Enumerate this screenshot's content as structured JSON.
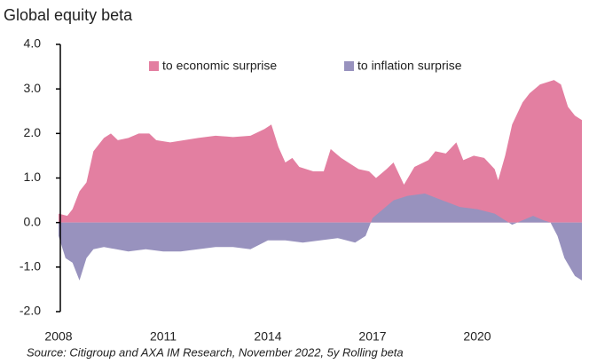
{
  "chart_data": {
    "type": "area",
    "title": "Global equity beta",
    "source": "Source: Citigroup and AXA IM Research, November 2022, 5y Rolling beta",
    "xlim": [
      2008,
      2023
    ],
    "xticks": [
      2008,
      2011,
      2014,
      2017,
      2020
    ],
    "ylim": [
      -2,
      4
    ],
    "yticks": [
      {
        "value": 4,
        "label": "4.0"
      },
      {
        "value": 3,
        "label": "3.0"
      },
      {
        "value": 2,
        "label": "2.0"
      },
      {
        "value": 1,
        "label": "1.0"
      },
      {
        "value": 0,
        "label": "0.0"
      },
      {
        "value": -1,
        "label": "-1.0"
      },
      {
        "value": -2,
        "label": "-2.0"
      }
    ],
    "legend": "top",
    "series": [
      {
        "name": "to economic surprise",
        "color": "#e37fa1",
        "x": [
          2008.0,
          2008.25,
          2008.4,
          2008.6,
          2008.8,
          2009.0,
          2009.3,
          2009.5,
          2009.7,
          2010.0,
          2010.3,
          2010.6,
          2010.8,
          2011.2,
          2011.6,
          2012.0,
          2012.5,
          2013.0,
          2013.5,
          2013.9,
          2014.1,
          2014.3,
          2014.5,
          2014.7,
          2014.9,
          2015.3,
          2015.6,
          2015.8,
          2016.1,
          2016.4,
          2016.6,
          2016.9,
          2017.1,
          2017.4,
          2017.6,
          2017.9,
          2018.2,
          2018.6,
          2018.8,
          2019.1,
          2019.4,
          2019.6,
          2019.9,
          2020.2,
          2020.5,
          2020.6,
          2020.8,
          2021.0,
          2021.3,
          2021.5,
          2021.8,
          2022.2,
          2022.4,
          2022.6,
          2022.8,
          2023.0
        ],
        "values": [
          0.2,
          0.15,
          0.3,
          0.7,
          0.9,
          1.6,
          1.9,
          2.0,
          1.85,
          1.9,
          2.0,
          2.0,
          1.85,
          1.8,
          1.85,
          1.9,
          1.95,
          1.92,
          1.95,
          2.1,
          2.2,
          1.7,
          1.35,
          1.45,
          1.25,
          1.15,
          1.15,
          1.65,
          1.45,
          1.3,
          1.2,
          1.15,
          1.0,
          1.2,
          1.35,
          0.85,
          1.25,
          1.4,
          1.6,
          1.55,
          1.8,
          1.4,
          1.5,
          1.45,
          1.2,
          0.95,
          1.5,
          2.2,
          2.7,
          2.9,
          3.1,
          3.2,
          3.1,
          2.6,
          2.4,
          2.3
        ]
      },
      {
        "name": "to inflation surprise",
        "color": "#9892be",
        "x": [
          2008.0,
          2008.2,
          2008.4,
          2008.6,
          2008.8,
          2009.0,
          2009.3,
          2010.0,
          2010.5,
          2011.0,
          2011.5,
          2012.0,
          2012.5,
          2013.0,
          2013.5,
          2014.0,
          2014.5,
          2015.0,
          2015.5,
          2016.0,
          2016.5,
          2016.8,
          2017.0,
          2017.3,
          2017.6,
          2018.0,
          2018.5,
          2019.0,
          2019.5,
          2020.0,
          2020.5,
          2020.7,
          2021.0,
          2021.3,
          2021.6,
          2021.9,
          2022.1,
          2022.3,
          2022.5,
          2022.8,
          2023.0
        ],
        "values": [
          -0.3,
          -0.8,
          -0.9,
          -1.3,
          -0.8,
          -0.6,
          -0.55,
          -0.65,
          -0.6,
          -0.65,
          -0.65,
          -0.6,
          -0.55,
          -0.55,
          -0.6,
          -0.4,
          -0.4,
          -0.45,
          -0.4,
          -0.35,
          -0.45,
          -0.3,
          0.1,
          0.3,
          0.5,
          0.6,
          0.65,
          0.5,
          0.35,
          0.3,
          0.2,
          0.1,
          -0.05,
          0.05,
          0.15,
          0.05,
          0.0,
          -0.3,
          -0.8,
          -1.2,
          -1.3
        ]
      }
    ]
  }
}
